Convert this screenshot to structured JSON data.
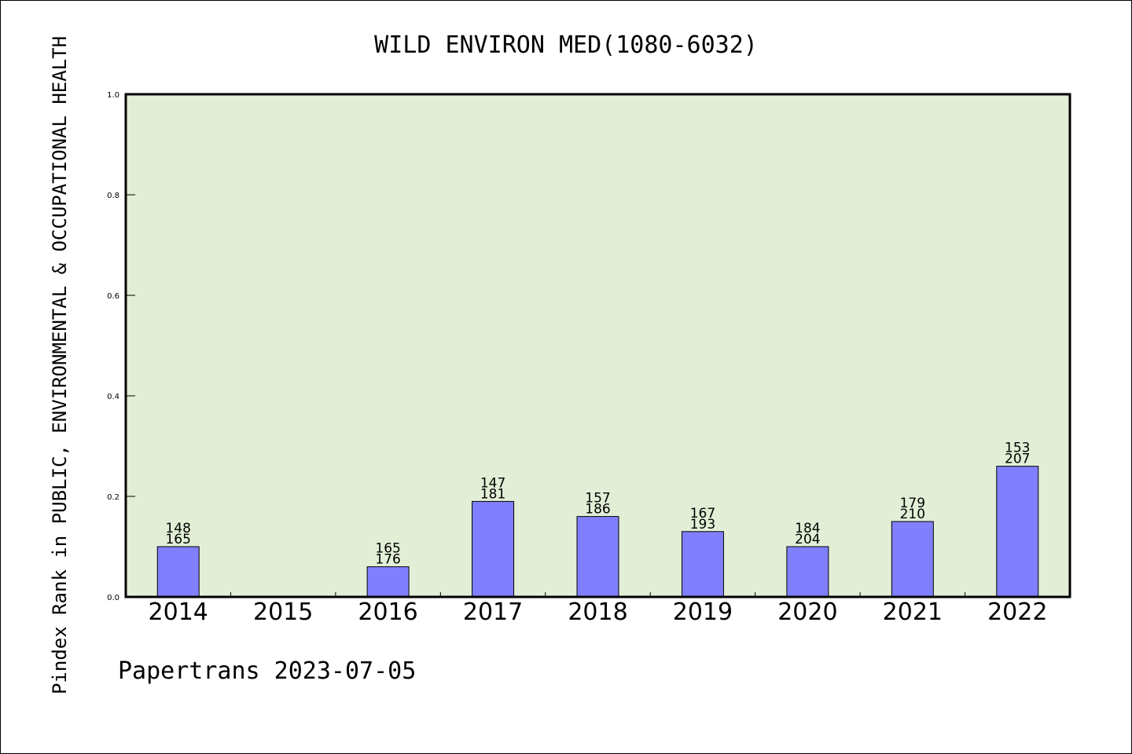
{
  "chart_data": {
    "type": "bar",
    "title": "WILD ENVIRON MED(1080-6032)",
    "ylabel": "Pindex Rank in PUBLIC, ENVIRONMENTAL & OCCUPATIONAL HEALTH",
    "xlabel": "",
    "ylim": [
      0,
      1.0
    ],
    "yticks": [
      "0.0",
      "0.2",
      "0.4",
      "0.6",
      "0.8",
      "1.0"
    ],
    "categories": [
      "2014",
      "2015",
      "2016",
      "2017",
      "2018",
      "2019",
      "2020",
      "2021",
      "2022"
    ],
    "values": [
      0.1,
      0,
      0.06,
      0.19,
      0.16,
      0.13,
      0.1,
      0.15,
      0.26
    ],
    "labels_top": [
      "148",
      "",
      "165",
      "147",
      "157",
      "167",
      "184",
      "179",
      "153"
    ],
    "labels_bottom": [
      "165",
      "",
      "176",
      "181",
      "186",
      "193",
      "204",
      "210",
      "207"
    ],
    "bar_color": "#8080ff",
    "plot_background": "#e2efd6",
    "grid": false,
    "legend": "none"
  },
  "footer": "Papertrans 2023-07-05"
}
